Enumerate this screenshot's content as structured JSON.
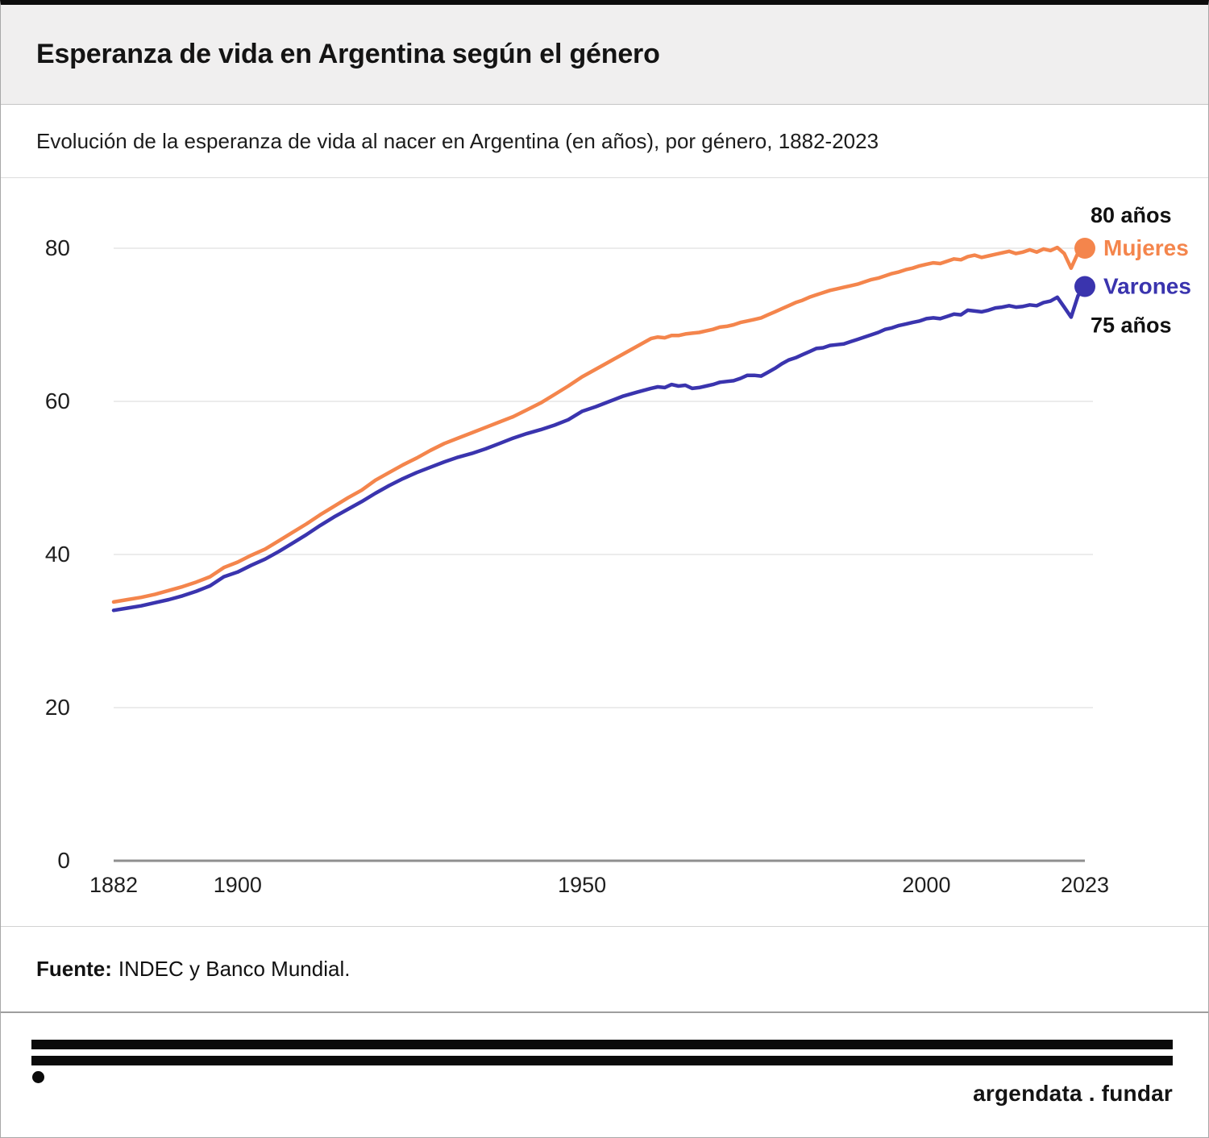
{
  "header": {
    "title": "Esperanza de vida en Argentina según el género"
  },
  "subtitle": "Evolución de la esperanza de vida al nacer en Argentina (en años), por género, 1882-2023",
  "footer": {
    "source_label": "Fuente:",
    "source_text": "INDEC y Banco Mundial."
  },
  "branding": {
    "logo_text": "argendata . fundar"
  },
  "colors": {
    "mujeres": "#f4854c",
    "varones": "#3a34ae",
    "grid": "#ececec",
    "axis": "#8f8f8f",
    "tick_text": "#1f1f1f",
    "annotation_text": "#111111",
    "header_bg": "#f0efef"
  },
  "chart_data": {
    "type": "line",
    "title": "Esperanza de vida en Argentina según el género",
    "subtitle": "Evolución de la esperanza de vida al nacer en Argentina (en años), por género, 1882-2023",
    "xlabel": "",
    "ylabel": "",
    "xlim": [
      1882,
      2023
    ],
    "ylim": [
      0,
      84
    ],
    "x_ticks": [
      1882,
      1900,
      1950,
      2000,
      2023
    ],
    "y_ticks": [
      0,
      20,
      40,
      60,
      80
    ],
    "grid": "horizontal",
    "legend_position": "right-end-labels",
    "annotations": [
      {
        "text": "80 años",
        "series": "Mujeres",
        "position": "above-end"
      },
      {
        "text": "75 años",
        "series": "Varones",
        "position": "below-end"
      }
    ],
    "series": [
      {
        "name": "Mujeres",
        "color": "#f4854c",
        "end_value_label": "80 años",
        "points": [
          [
            1882,
            33.8
          ],
          [
            1884,
            34.1
          ],
          [
            1886,
            34.4
          ],
          [
            1888,
            34.8
          ],
          [
            1890,
            35.3
          ],
          [
            1892,
            35.8
          ],
          [
            1894,
            36.4
          ],
          [
            1896,
            37.1
          ],
          [
            1898,
            38.3
          ],
          [
            1900,
            39.0
          ],
          [
            1902,
            39.9
          ],
          [
            1904,
            40.7
          ],
          [
            1906,
            41.8
          ],
          [
            1908,
            42.9
          ],
          [
            1910,
            44.0
          ],
          [
            1912,
            45.2
          ],
          [
            1914,
            46.3
          ],
          [
            1916,
            47.4
          ],
          [
            1918,
            48.4
          ],
          [
            1920,
            49.7
          ],
          [
            1922,
            50.7
          ],
          [
            1924,
            51.7
          ],
          [
            1926,
            52.6
          ],
          [
            1928,
            53.6
          ],
          [
            1930,
            54.5
          ],
          [
            1932,
            55.2
          ],
          [
            1934,
            55.9
          ],
          [
            1936,
            56.6
          ],
          [
            1938,
            57.3
          ],
          [
            1940,
            58.0
          ],
          [
            1942,
            58.9
          ],
          [
            1944,
            59.8
          ],
          [
            1946,
            60.9
          ],
          [
            1948,
            62.0
          ],
          [
            1950,
            63.2
          ],
          [
            1952,
            64.2
          ],
          [
            1954,
            65.2
          ],
          [
            1956,
            66.2
          ],
          [
            1958,
            67.2
          ],
          [
            1960,
            68.2
          ],
          [
            1961,
            68.4
          ],
          [
            1962,
            68.3
          ],
          [
            1963,
            68.6
          ],
          [
            1964,
            68.6
          ],
          [
            1965,
            68.8
          ],
          [
            1966,
            68.9
          ],
          [
            1967,
            69.0
          ],
          [
            1968,
            69.2
          ],
          [
            1969,
            69.4
          ],
          [
            1970,
            69.7
          ],
          [
            1971,
            69.8
          ],
          [
            1972,
            70.0
          ],
          [
            1973,
            70.3
          ],
          [
            1974,
            70.5
          ],
          [
            1975,
            70.7
          ],
          [
            1976,
            70.9
          ],
          [
            1977,
            71.3
          ],
          [
            1978,
            71.7
          ],
          [
            1979,
            72.1
          ],
          [
            1980,
            72.5
          ],
          [
            1981,
            72.9
          ],
          [
            1982,
            73.2
          ],
          [
            1983,
            73.6
          ],
          [
            1984,
            73.9
          ],
          [
            1985,
            74.2
          ],
          [
            1986,
            74.5
          ],
          [
            1987,
            74.7
          ],
          [
            1988,
            74.9
          ],
          [
            1989,
            75.1
          ],
          [
            1990,
            75.3
          ],
          [
            1991,
            75.6
          ],
          [
            1992,
            75.9
          ],
          [
            1993,
            76.1
          ],
          [
            1994,
            76.4
          ],
          [
            1995,
            76.7
          ],
          [
            1996,
            76.9
          ],
          [
            1997,
            77.2
          ],
          [
            1998,
            77.4
          ],
          [
            1999,
            77.7
          ],
          [
            2000,
            77.9
          ],
          [
            2001,
            78.1
          ],
          [
            2002,
            78.0
          ],
          [
            2003,
            78.3
          ],
          [
            2004,
            78.6
          ],
          [
            2005,
            78.5
          ],
          [
            2006,
            78.9
          ],
          [
            2007,
            79.1
          ],
          [
            2008,
            78.8
          ],
          [
            2009,
            79.0
          ],
          [
            2010,
            79.2
          ],
          [
            2011,
            79.4
          ],
          [
            2012,
            79.6
          ],
          [
            2013,
            79.3
          ],
          [
            2014,
            79.5
          ],
          [
            2015,
            79.8
          ],
          [
            2016,
            79.5
          ],
          [
            2017,
            79.9
          ],
          [
            2018,
            79.7
          ],
          [
            2019,
            80.1
          ],
          [
            2020,
            79.3
          ],
          [
            2021,
            77.4
          ],
          [
            2022,
            79.4
          ],
          [
            2023,
            80.0
          ]
        ]
      },
      {
        "name": "Varones",
        "color": "#3a34ae",
        "end_value_label": "75 años",
        "points": [
          [
            1882,
            32.7
          ],
          [
            1884,
            33.0
          ],
          [
            1886,
            33.3
          ],
          [
            1888,
            33.7
          ],
          [
            1890,
            34.1
          ],
          [
            1892,
            34.6
          ],
          [
            1894,
            35.2
          ],
          [
            1896,
            35.9
          ],
          [
            1898,
            37.1
          ],
          [
            1900,
            37.7
          ],
          [
            1902,
            38.6
          ],
          [
            1904,
            39.4
          ],
          [
            1906,
            40.4
          ],
          [
            1908,
            41.5
          ],
          [
            1910,
            42.6
          ],
          [
            1912,
            43.8
          ],
          [
            1914,
            44.9
          ],
          [
            1916,
            45.9
          ],
          [
            1918,
            46.9
          ],
          [
            1920,
            48.0
          ],
          [
            1922,
            49.0
          ],
          [
            1924,
            49.9
          ],
          [
            1926,
            50.7
          ],
          [
            1928,
            51.4
          ],
          [
            1930,
            52.1
          ],
          [
            1932,
            52.7
          ],
          [
            1934,
            53.2
          ],
          [
            1936,
            53.8
          ],
          [
            1938,
            54.5
          ],
          [
            1940,
            55.2
          ],
          [
            1942,
            55.8
          ],
          [
            1944,
            56.3
          ],
          [
            1946,
            56.9
          ],
          [
            1948,
            57.6
          ],
          [
            1950,
            58.7
          ],
          [
            1952,
            59.3
          ],
          [
            1954,
            60.0
          ],
          [
            1956,
            60.7
          ],
          [
            1958,
            61.2
          ],
          [
            1960,
            61.7
          ],
          [
            1961,
            61.9
          ],
          [
            1962,
            61.8
          ],
          [
            1963,
            62.2
          ],
          [
            1964,
            62.0
          ],
          [
            1965,
            62.1
          ],
          [
            1966,
            61.7
          ],
          [
            1967,
            61.8
          ],
          [
            1968,
            62.0
          ],
          [
            1969,
            62.2
          ],
          [
            1970,
            62.5
          ],
          [
            1971,
            62.6
          ],
          [
            1972,
            62.7
          ],
          [
            1973,
            63.0
          ],
          [
            1974,
            63.4
          ],
          [
            1975,
            63.4
          ],
          [
            1976,
            63.3
          ],
          [
            1977,
            63.8
          ],
          [
            1978,
            64.3
          ],
          [
            1979,
            64.9
          ],
          [
            1980,
            65.4
          ],
          [
            1981,
            65.7
          ],
          [
            1982,
            66.1
          ],
          [
            1983,
            66.5
          ],
          [
            1984,
            66.9
          ],
          [
            1985,
            67.0
          ],
          [
            1986,
            67.3
          ],
          [
            1987,
            67.4
          ],
          [
            1988,
            67.5
          ],
          [
            1989,
            67.8
          ],
          [
            1990,
            68.1
          ],
          [
            1991,
            68.4
          ],
          [
            1992,
            68.7
          ],
          [
            1993,
            69.0
          ],
          [
            1994,
            69.4
          ],
          [
            1995,
            69.6
          ],
          [
            1996,
            69.9
          ],
          [
            1997,
            70.1
          ],
          [
            1998,
            70.3
          ],
          [
            1999,
            70.5
          ],
          [
            2000,
            70.8
          ],
          [
            2001,
            70.9
          ],
          [
            2002,
            70.8
          ],
          [
            2003,
            71.1
          ],
          [
            2004,
            71.4
          ],
          [
            2005,
            71.3
          ],
          [
            2006,
            71.9
          ],
          [
            2007,
            71.8
          ],
          [
            2008,
            71.7
          ],
          [
            2009,
            71.9
          ],
          [
            2010,
            72.2
          ],
          [
            2011,
            72.3
          ],
          [
            2012,
            72.5
          ],
          [
            2013,
            72.3
          ],
          [
            2014,
            72.4
          ],
          [
            2015,
            72.6
          ],
          [
            2016,
            72.5
          ],
          [
            2017,
            72.9
          ],
          [
            2018,
            73.1
          ],
          [
            2019,
            73.6
          ],
          [
            2020,
            72.3
          ],
          [
            2021,
            71.0
          ],
          [
            2022,
            73.8
          ],
          [
            2023,
            75.0
          ]
        ]
      }
    ]
  }
}
